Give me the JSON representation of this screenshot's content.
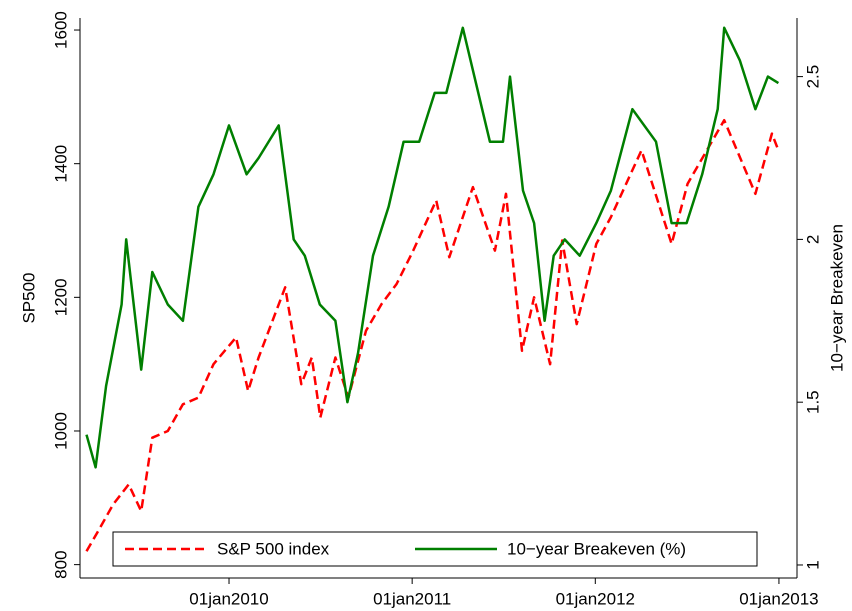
{
  "chart_data": {
    "type": "line",
    "y_label": "SP500",
    "y2_label": "10−year Breakeven",
    "xlim": [
      "2009-03-10",
      "2013-02-06"
    ],
    "xticks": [
      {
        "value": "2010-01-01",
        "label": "01jan2010"
      },
      {
        "value": "2011-01-01",
        "label": "01jan2011"
      },
      {
        "value": "2012-01-01",
        "label": "01jan2012"
      },
      {
        "value": "2013-01-01",
        "label": "01jan2013"
      }
    ],
    "ylim": [
      780,
      1618
    ],
    "yticks": [
      800,
      1000,
      1200,
      1400,
      1600
    ],
    "y2lim": [
      0.96,
      2.68
    ],
    "y2ticks": [
      1,
      1.5,
      2,
      2.5
    ],
    "legend": "bottom",
    "series": [
      {
        "name": "S&P 500 index",
        "color": "#ff0000",
        "dash": true,
        "x": [
          "2009-03-23",
          "2009-04-15",
          "2009-05-15",
          "2009-06-15",
          "2009-07-10",
          "2009-08-01",
          "2009-09-01",
          "2009-10-01",
          "2009-11-01",
          "2009-12-01",
          "2010-01-15",
          "2010-02-08",
          "2010-03-01",
          "2010-04-23",
          "2010-05-25",
          "2010-06-15",
          "2010-07-02",
          "2010-08-01",
          "2010-08-27",
          "2010-10-01",
          "2010-11-01",
          "2010-12-01",
          "2011-01-03",
          "2011-02-18",
          "2011-03-16",
          "2011-05-02",
          "2011-06-15",
          "2011-07-07",
          "2011-08-08",
          "2011-09-01",
          "2011-10-03",
          "2011-10-27",
          "2011-11-25",
          "2012-01-03",
          "2012-02-01",
          "2012-04-02",
          "2012-06-01",
          "2012-07-03",
          "2012-09-14",
          "2012-11-15",
          "2012-12-18",
          "2012-12-31"
        ],
        "values": [
          820,
          850,
          890,
          920,
          880,
          990,
          1000,
          1040,
          1050,
          1100,
          1140,
          1060,
          1110,
          1215,
          1070,
          1110,
          1020,
          1110,
          1050,
          1150,
          1190,
          1220,
          1270,
          1345,
          1260,
          1365,
          1270,
          1355,
          1120,
          1200,
          1100,
          1285,
          1160,
          1280,
          1320,
          1420,
          1280,
          1370,
          1465,
          1355,
          1445,
          1420
        ]
      },
      {
        "name": "10−year Breakeven (%)",
        "color": "#007f00",
        "axis": "y2",
        "x": [
          "2009-03-23",
          "2009-04-10",
          "2009-05-01",
          "2009-06-01",
          "2009-06-10",
          "2009-07-10",
          "2009-08-01",
          "2009-09-01",
          "2009-10-01",
          "2009-11-01",
          "2009-12-01",
          "2010-01-01",
          "2010-02-05",
          "2010-03-01",
          "2010-04-10",
          "2010-05-10",
          "2010-06-01",
          "2010-07-01",
          "2010-08-01",
          "2010-08-25",
          "2010-09-15",
          "2010-10-15",
          "2010-11-15",
          "2010-12-15",
          "2011-01-15",
          "2011-02-15",
          "2011-03-10",
          "2011-04-12",
          "2011-05-05",
          "2011-06-05",
          "2011-07-01",
          "2011-07-15",
          "2011-08-10",
          "2011-09-01",
          "2011-09-22",
          "2011-10-10",
          "2011-11-01",
          "2011-12-01",
          "2012-01-03",
          "2012-02-01",
          "2012-03-15",
          "2012-05-01",
          "2012-06-01",
          "2012-07-01",
          "2012-08-01",
          "2012-09-01",
          "2012-09-14",
          "2012-10-15",
          "2012-11-15",
          "2012-12-10",
          "2012-12-31"
        ],
        "values": [
          1.4,
          1.3,
          1.55,
          1.8,
          2.0,
          1.6,
          1.9,
          1.8,
          1.75,
          2.1,
          2.2,
          2.35,
          2.2,
          2.25,
          2.35,
          2.0,
          1.95,
          1.8,
          1.75,
          1.5,
          1.65,
          1.95,
          2.1,
          2.3,
          2.3,
          2.45,
          2.45,
          2.65,
          2.5,
          2.3,
          2.3,
          2.5,
          2.15,
          2.05,
          1.75,
          1.95,
          2.0,
          1.95,
          2.05,
          2.15,
          2.4,
          2.3,
          2.05,
          2.05,
          2.2,
          2.4,
          2.65,
          2.55,
          2.4,
          2.5,
          2.48
        ]
      }
    ]
  }
}
